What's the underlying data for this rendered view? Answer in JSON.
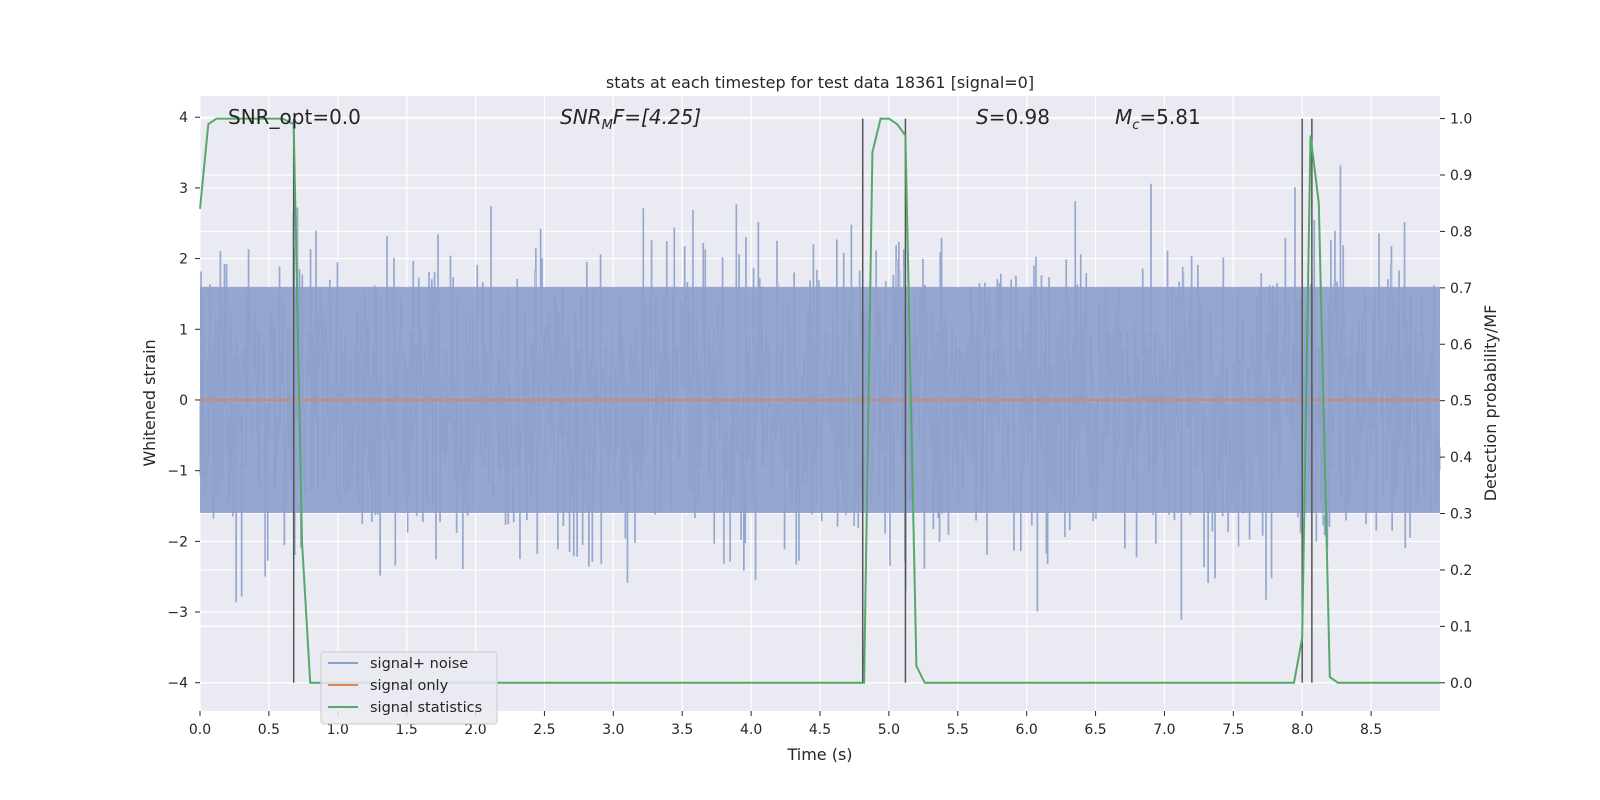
{
  "chart_data": {
    "type": "line",
    "title": "stats at each timestep for test data 18361 [signal=0]",
    "xlabel": "Time (s)",
    "ylabel": "Whitened strain",
    "ylabel_right": "Detection probability/MF",
    "xlim": [
      0,
      9.0
    ],
    "ylim": [
      -4.4,
      4.3
    ],
    "ylim_right": [
      -0.05,
      1.04
    ],
    "xticks": [
      "0.0",
      "0.5",
      "1.0",
      "1.5",
      "2.0",
      "2.5",
      "3.0",
      "3.5",
      "4.0",
      "4.5",
      "5.0",
      "5.5",
      "6.0",
      "6.5",
      "7.0",
      "7.5",
      "8.0",
      "8.5"
    ],
    "yticks": [
      "−4",
      "−3",
      "−2",
      "−1",
      "0",
      "1",
      "2",
      "3",
      "4"
    ],
    "yticks_right": [
      "0.0",
      "0.1",
      "0.2",
      "0.3",
      "0.4",
      "0.5",
      "0.6",
      "0.7",
      "0.8",
      "0.9",
      "1.0"
    ],
    "grid": true,
    "legend_position": "lower-left",
    "annotations": {
      "snr_opt": "SNR_opt=0.0",
      "snr_mf_main": "SNR",
      "snr_mf_sub": "M",
      "snr_mf_tail": "F=[4.25]",
      "s_symbol": "S",
      "s_value": "=0.98",
      "mc_symbol": "M",
      "mc_sub": "c",
      "mc_value": "=5.81"
    },
    "series": [
      {
        "name": "signal+ noise",
        "color": "#8da0cb",
        "style": "dense-noise",
        "sample_rate_hz": 200,
        "envelope": {
          "typical_max": 1.6,
          "typical_min": -1.6,
          "peak_max": 3.95,
          "peak_min": -4.0
        }
      },
      {
        "name": "signal only",
        "color": "#dd8452",
        "x": [
          0,
          9.0
        ],
        "y": [
          0,
          0
        ]
      },
      {
        "name": "signal statistics",
        "color": "#55a868",
        "axis": "right",
        "x": [
          0.0,
          0.06,
          0.12,
          0.2,
          0.3,
          0.4,
          0.5,
          0.6,
          0.68,
          0.74,
          0.8,
          0.9,
          1.0,
          2.0,
          3.0,
          4.0,
          4.6,
          4.82,
          4.88,
          4.94,
          5.0,
          5.06,
          5.12,
          5.2,
          5.26,
          6.0,
          7.0,
          7.5,
          7.94,
          8.0,
          8.06,
          8.12,
          8.2,
          8.26,
          8.5,
          9.0
        ],
        "y": [
          0.84,
          0.99,
          1.0,
          1.0,
          1.0,
          1.0,
          1.0,
          1.0,
          0.99,
          0.25,
          0.0,
          0.0,
          0.0,
          0.0,
          0.0,
          0.0,
          0.0,
          0.0,
          0.94,
          1.0,
          1.0,
          0.99,
          0.97,
          0.03,
          0.0,
          0.0,
          0.0,
          0.0,
          0.0,
          0.08,
          0.97,
          0.85,
          0.01,
          0.0,
          0.0,
          0.0
        ]
      }
    ],
    "detection_markers": {
      "color": "#555555",
      "x": [
        0.68,
        4.81,
        5.12,
        8.0,
        8.07
      ]
    }
  }
}
